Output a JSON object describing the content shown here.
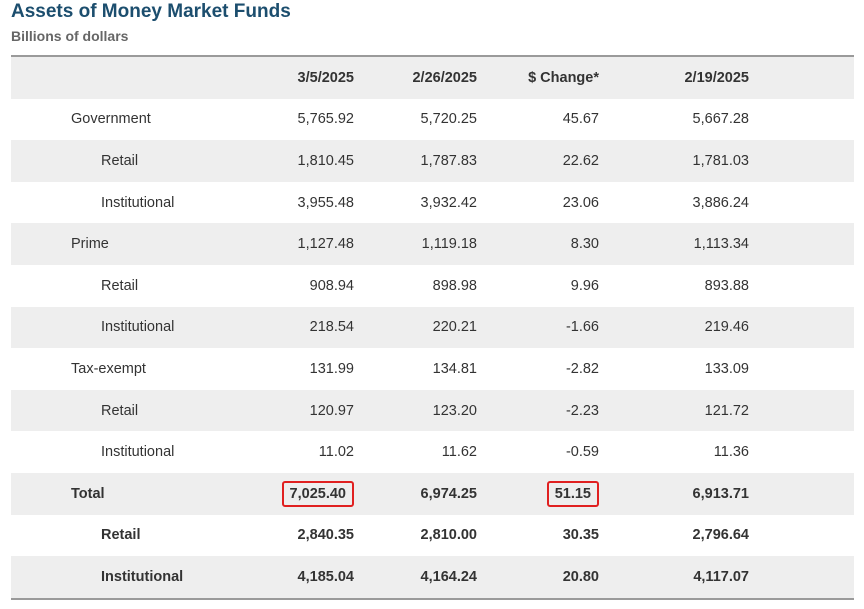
{
  "header": {
    "title": "Assets of Money Market Funds",
    "subtitle": "Billions of dollars"
  },
  "table": {
    "columns": [
      "",
      "3/5/2025",
      "2/26/2025",
      "$ Change*",
      "2/19/2025"
    ],
    "rows": [
      {
        "label": "Government",
        "values": [
          "5,765.92",
          "5,720.25",
          "45.67",
          "5,667.28"
        ]
      },
      {
        "label": "Retail",
        "values": [
          "1,810.45",
          "1,787.83",
          "22.62",
          "1,781.03"
        ]
      },
      {
        "label": "Institutional",
        "values": [
          "3,955.48",
          "3,932.42",
          "23.06",
          "3,886.24"
        ]
      },
      {
        "label": "Prime",
        "values": [
          "1,127.48",
          "1,119.18",
          "8.30",
          "1,113.34"
        ]
      },
      {
        "label": "Retail",
        "values": [
          "908.94",
          "898.98",
          "9.96",
          "893.88"
        ]
      },
      {
        "label": "Institutional",
        "values": [
          "218.54",
          "220.21",
          "-1.66",
          "219.46"
        ]
      },
      {
        "label": "Tax-exempt",
        "values": [
          "131.99",
          "134.81",
          "-2.82",
          "133.09"
        ]
      },
      {
        "label": "Retail",
        "values": [
          "120.97",
          "123.20",
          "-2.23",
          "121.72"
        ]
      },
      {
        "label": "Institutional",
        "values": [
          "11.02",
          "11.62",
          "-0.59",
          "11.36"
        ]
      },
      {
        "label": "Total",
        "values": [
          "7,025.40",
          "6,974.25",
          "51.15",
          "6,913.71"
        ]
      },
      {
        "label": "Retail",
        "values": [
          "2,840.35",
          "2,810.00",
          "30.35",
          "2,796.64"
        ]
      },
      {
        "label": "Institutional",
        "values": [
          "4,185.04",
          "4,164.24",
          "20.80",
          "4,117.07"
        ]
      }
    ]
  },
  "highlight_color": "#e02020"
}
